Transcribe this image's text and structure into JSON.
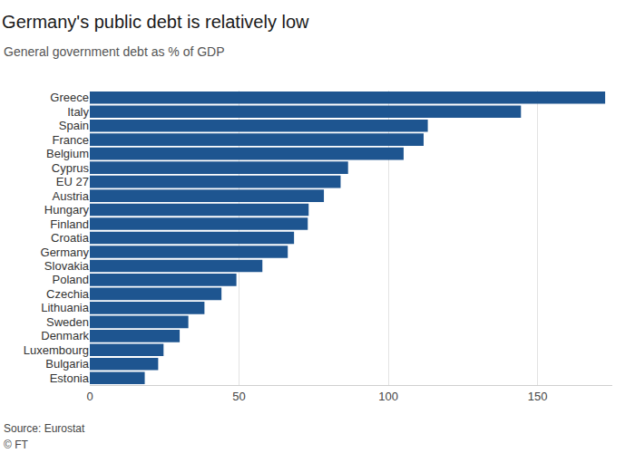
{
  "chart_data": {
    "type": "bar",
    "orientation": "horizontal",
    "title": "Germany's public debt is relatively low",
    "subtitle": "General government debt as % of GDP",
    "annotations": [
      "Source: Eurostat",
      "© FT"
    ],
    "categories": [
      "Greece",
      "Italy",
      "Spain",
      "France",
      "Belgium",
      "Cyprus",
      "EU 27",
      "Austria",
      "Hungary",
      "Finland",
      "Croatia",
      "Germany",
      "Slovakia",
      "Poland",
      "Czechia",
      "Lithuania",
      "Sweden",
      "Denmark",
      "Luxembourg",
      "Bulgaria",
      "Estonia"
    ],
    "values": [
      172.6,
      144.4,
      113.2,
      111.8,
      105.1,
      86.5,
      84.0,
      78.4,
      73.3,
      73.0,
      68.4,
      66.3,
      57.8,
      49.1,
      44.1,
      38.4,
      33.0,
      30.1,
      24.7,
      22.9,
      18.4
    ],
    "color": "#1e5590",
    "xlim": [
      0,
      175
    ],
    "xticks": [
      0,
      50,
      100,
      150
    ],
    "grid": true
  }
}
